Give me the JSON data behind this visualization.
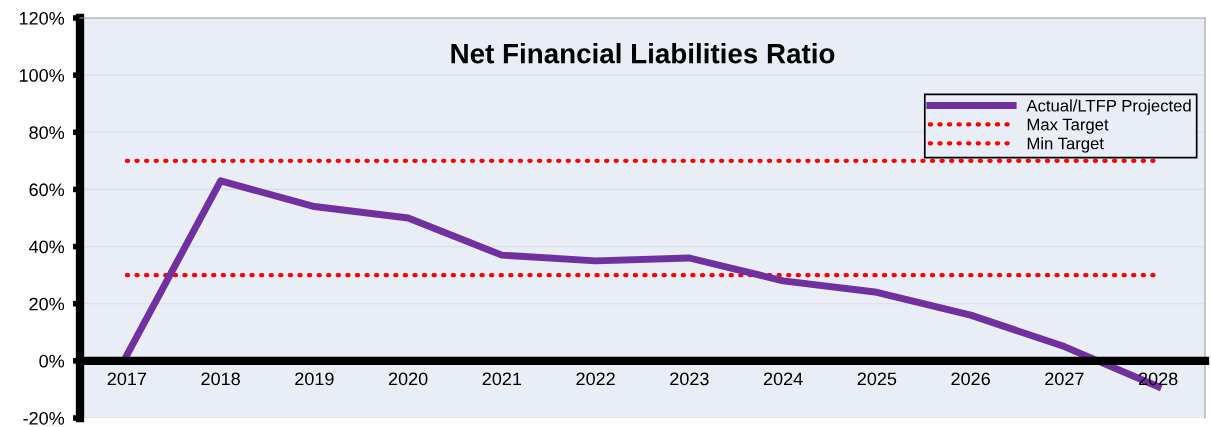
{
  "chart_data": {
    "type": "line",
    "title": "Net Financial Liabilities Ratio",
    "categories": [
      "2017",
      "2018",
      "2019",
      "2020",
      "2021",
      "2022",
      "2023",
      "2024",
      "2025",
      "2026",
      "2027",
      "2028"
    ],
    "series": [
      {
        "name": "Actual/LTFP Projected",
        "color": "#7030a0",
        "line_style": "solid",
        "values": [
          2,
          63,
          54,
          50,
          37,
          35,
          36,
          28,
          24,
          16,
          5,
          -9
        ]
      },
      {
        "name": "Max Target",
        "color": "#ff0000",
        "line_style": "dotted",
        "values": [
          70,
          70,
          70,
          70,
          70,
          70,
          70,
          70,
          70,
          70,
          70,
          70
        ]
      },
      {
        "name": "Min Target",
        "color": "#ff0000",
        "line_style": "dotted",
        "values": [
          30,
          30,
          30,
          30,
          30,
          30,
          30,
          30,
          30,
          30,
          30,
          30
        ]
      }
    ],
    "ylim": [
      -20,
      120
    ],
    "yticks": [
      {
        "value": -20,
        "label": "-20%"
      },
      {
        "value": 0,
        "label": "0%"
      },
      {
        "value": 20,
        "label": "20%"
      },
      {
        "value": 40,
        "label": "40%"
      },
      {
        "value": 60,
        "label": "60%"
      },
      {
        "value": 80,
        "label": "80%"
      },
      {
        "value": 100,
        "label": "100%"
      },
      {
        "value": 120,
        "label": "120%"
      }
    ],
    "grid": "y",
    "legend": "top right",
    "marker": "none"
  }
}
